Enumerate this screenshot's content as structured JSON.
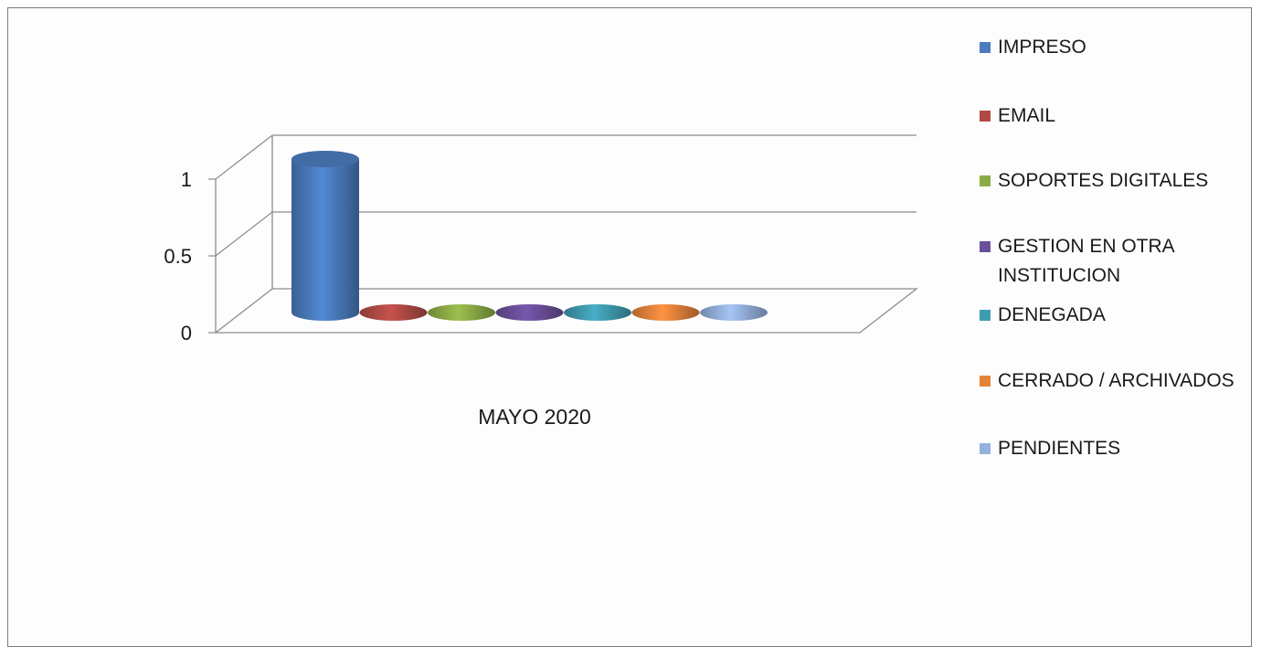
{
  "chart_data": {
    "type": "bar",
    "bar_shape": "3d-cylinder",
    "categories": [
      "MAYO 2020"
    ],
    "xlabel": "MAYO 2020",
    "ylim": [
      0,
      1
    ],
    "yticks": [
      "0",
      "0.5",
      "1"
    ],
    "grid": true,
    "legend_position": "right",
    "series": [
      {
        "name": "IMPRESO",
        "values": [
          1
        ],
        "color": "#4a7bbd"
      },
      {
        "name": "EMAIL",
        "values": [
          0
        ],
        "color": "#b14a45"
      },
      {
        "name": "SOPORTES DIGITALES",
        "values": [
          0
        ],
        "color": "#8cab46"
      },
      {
        "name": "GESTION EN OTRA INSTITUCION",
        "values": [
          0
        ],
        "color": "#6b4f9a"
      },
      {
        "name": "DENEGADA",
        "values": [
          0
        ],
        "color": "#3f9bb0"
      },
      {
        "name": "CERRADO / ARCHIVADOS",
        "values": [
          0
        ],
        "color": "#e5823a"
      },
      {
        "name": "PENDIENTES",
        "values": [
          0
        ],
        "color": "#94b0dc"
      }
    ]
  }
}
